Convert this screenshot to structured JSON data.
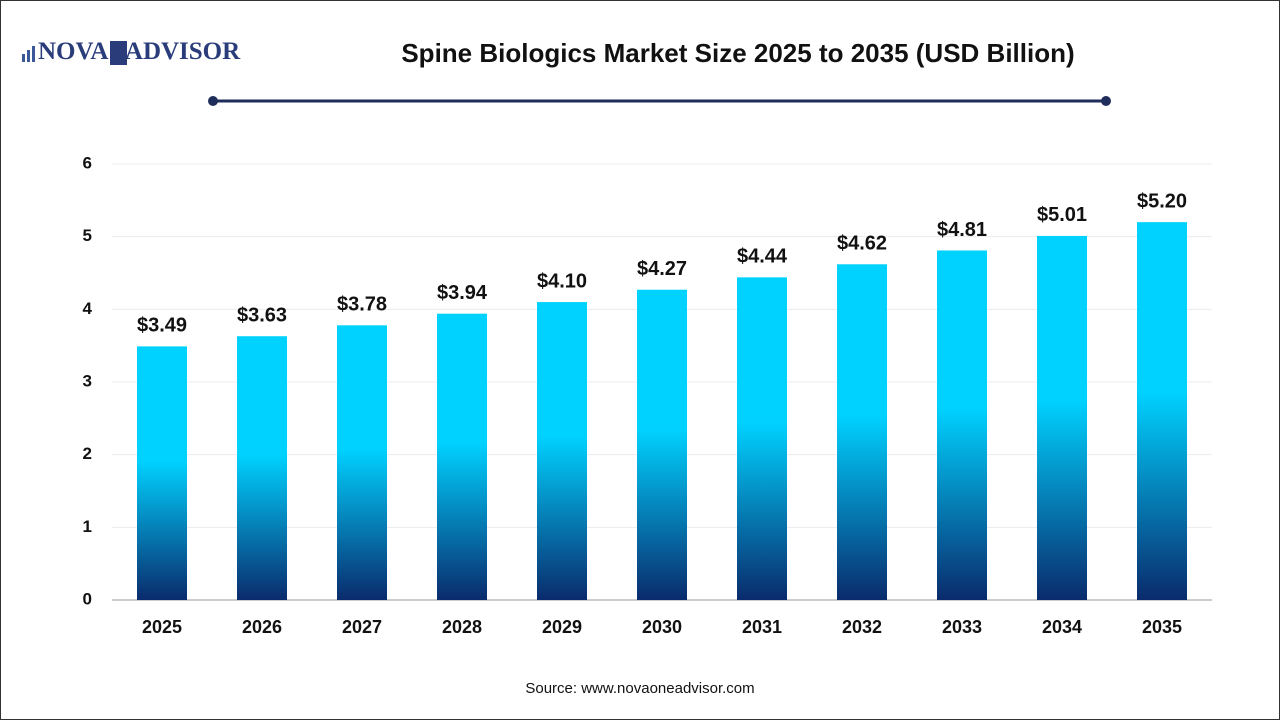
{
  "logo": {
    "left": "NOVA",
    "mark": "1",
    "right": "ADVISOR"
  },
  "chart_data": {
    "type": "bar",
    "title": "Spine Biologics Market Size 2025 to 2035 (USD Billion)",
    "categories": [
      "2025",
      "2026",
      "2027",
      "2028",
      "2029",
      "2030",
      "2031",
      "2032",
      "2033",
      "2034",
      "2035"
    ],
    "values": [
      3.49,
      3.63,
      3.78,
      3.94,
      4.1,
      4.27,
      4.44,
      4.62,
      4.81,
      5.01,
      5.2
    ],
    "value_labels": [
      "$3.49",
      "$3.63",
      "$3.78",
      "$3.94",
      "$4.10",
      "$4.27",
      "$4.44",
      "$4.62",
      "$4.81",
      "$5.01",
      "$5.20"
    ],
    "gradient": [
      "#00d2ff",
      "#0a2b6c"
    ],
    "ylim": [
      0,
      6
    ],
    "yticks": [
      0,
      1,
      2,
      3,
      4,
      5,
      6
    ],
    "grid": true,
    "source": "Source: www.novaoneadvisor.com"
  }
}
